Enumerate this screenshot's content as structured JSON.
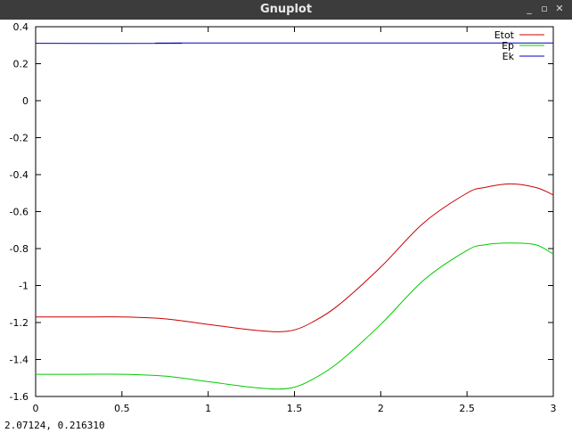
{
  "window": {
    "title": "Gnuplot",
    "buttons": [
      {
        "name": "minimize-button",
        "glyph": "_"
      },
      {
        "name": "maximize-button",
        "glyph": "▫"
      },
      {
        "name": "close-button",
        "glyph": "✕"
      }
    ]
  },
  "status": {
    "coords": "2.07124,  0.216310"
  },
  "colors": {
    "titlebar": "#3c3c3c",
    "etot": "#cc0000",
    "ep": "#00cc00",
    "ek": "#0000bb"
  },
  "chart_data": {
    "type": "line",
    "title": "",
    "xlabel": "",
    "ylabel": "",
    "xlim": [
      0,
      3
    ],
    "ylim": [
      -1.6,
      0.4
    ],
    "xticks": [
      0,
      0.5,
      1,
      1.5,
      2,
      2.5,
      3
    ],
    "xtick_labels": [
      "0",
      "0.5",
      "1",
      "1.5",
      "2",
      "2.5",
      "3"
    ],
    "yticks": [
      0.4,
      0.2,
      0,
      -0.2,
      -0.4,
      -0.6,
      -0.8,
      -1,
      -1.2,
      -1.4,
      -1.6
    ],
    "ytick_labels": [
      "0.4",
      "0.2",
      "0",
      "-0.2",
      "-0.4",
      "-0.6",
      "-0.8",
      "-1",
      "-1.2",
      "-1.4",
      "-1.6"
    ],
    "grid": false,
    "legend_position": "top-right",
    "series": [
      {
        "name": "Etot",
        "color": "#cc0000",
        "x": [
          0,
          0.25,
          0.5,
          0.75,
          1.0,
          1.25,
          1.4,
          1.5,
          1.6,
          1.75,
          2.0,
          2.25,
          2.5,
          2.6,
          2.75,
          2.9,
          3.0
        ],
        "y": [
          -1.17,
          -1.17,
          -1.17,
          -1.18,
          -1.21,
          -1.24,
          -1.25,
          -1.24,
          -1.2,
          -1.11,
          -0.9,
          -0.66,
          -0.5,
          -0.47,
          -0.45,
          -0.47,
          -0.51
        ]
      },
      {
        "name": "Ep",
        "color": "#00cc00",
        "x": [
          0,
          0.25,
          0.5,
          0.75,
          1.0,
          1.25,
          1.4,
          1.5,
          1.6,
          1.75,
          2.0,
          2.25,
          2.5,
          2.6,
          2.75,
          2.9,
          3.0
        ],
        "y": [
          -1.48,
          -1.48,
          -1.48,
          -1.49,
          -1.52,
          -1.55,
          -1.56,
          -1.55,
          -1.51,
          -1.42,
          -1.21,
          -0.97,
          -0.81,
          -0.78,
          -0.77,
          -0.78,
          -0.83
        ]
      },
      {
        "name": "Ek",
        "color": "#0000bb",
        "x": [
          0,
          0.82,
          0.83,
          3.0
        ],
        "y": [
          0.31,
          0.31,
          0.312,
          0.312
        ]
      }
    ]
  }
}
